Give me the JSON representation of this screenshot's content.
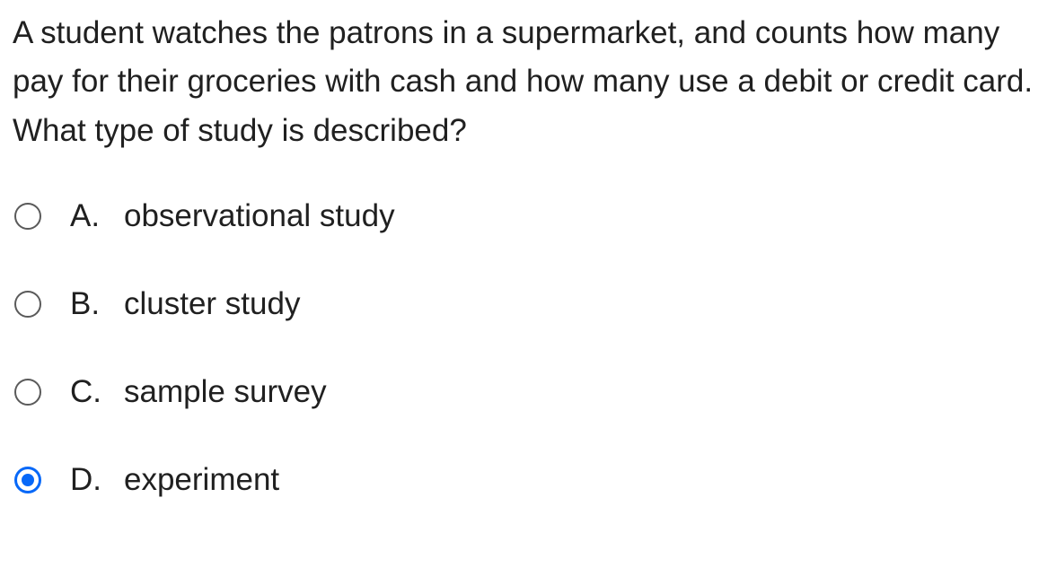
{
  "question": {
    "text": "A student watches the patrons in a supermarket, and counts how many pay for their groceries with cash and how many use a debit or credit card. What type of study is described?",
    "text_color": "#202020",
    "fontsize": 35
  },
  "options": [
    {
      "letter": "A.",
      "text": "observational study",
      "selected": false
    },
    {
      "letter": "B.",
      "text": "cluster study",
      "selected": false
    },
    {
      "letter": "C.",
      "text": "sample survey",
      "selected": false
    },
    {
      "letter": "D.",
      "text": "experiment",
      "selected": true
    }
  ],
  "colors": {
    "background": "#ffffff",
    "text": "#202020",
    "radio_border": "#5a5a5a",
    "radio_selected": "#0768f8"
  }
}
